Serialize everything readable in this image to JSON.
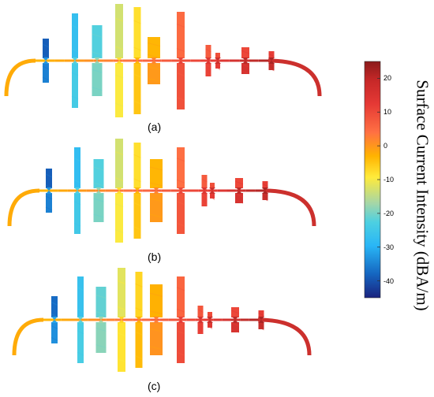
{
  "figure": {
    "panels": [
      {
        "label": "(a)",
        "intensity_scale": 0.0
      },
      {
        "label": "(b)",
        "intensity_scale": 0.0
      },
      {
        "label": "(c)",
        "intensity_scale": 0.0
      }
    ]
  },
  "colorbar": {
    "title": "Surface Current Intensity (dBA/m)",
    "min": -45,
    "max": 25,
    "ticks": [
      "20",
      "10",
      "0",
      "-10",
      "-20",
      "-30",
      "-40"
    ],
    "colormap": [
      "#1a237e",
      "#1565c0",
      "#29b6f6",
      "#4dd0e1",
      "#a5d6a7",
      "#ffeb3b",
      "#ffb300",
      "#ff7043",
      "#e53935",
      "#8b1a1a"
    ]
  }
}
